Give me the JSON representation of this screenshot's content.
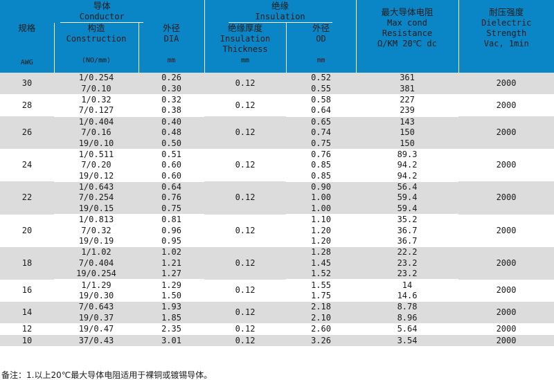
{
  "header": {
    "conductor_zh": "导体",
    "conductor_en": "Conductor",
    "insulation_zh": "绝缘",
    "insulation_en": "Insulation",
    "resistance_zh": "最大导体电阻",
    "resistance_en1": "Max cond",
    "resistance_en2": "Resistance",
    "resistance_en3": "Ω/KM 20℃ dc",
    "dielectric_zh": "耐压强度",
    "dielectric_en1": "Dielectric",
    "dielectric_en2": "Strength",
    "dielectric_en3": "Vac, 1min",
    "awg_zh": "规格",
    "awg_unit": "AWG",
    "construction_zh": "构造",
    "construction_en": "Construction",
    "construction_unit": "(NO/mm)",
    "dia_zh": "外径",
    "dia_en": "DIA",
    "dia_unit": "mm",
    "thickness_zh": "绝缘厚度",
    "thickness_en1": "Insulation",
    "thickness_en2": "Thickness",
    "thickness_unit": "mm",
    "od_zh": "外径",
    "od_en": "OD",
    "od_unit": "mm"
  },
  "groups": [
    {
      "awg": "30",
      "thickness": "0.12",
      "strength": "2000",
      "rows": [
        {
          "construction": "1/0.254",
          "dia": "0.26",
          "od": "0.52",
          "resistance": "361"
        },
        {
          "construction": "7/0.10",
          "dia": "0.30",
          "od": "0.55",
          "resistance": "381"
        }
      ]
    },
    {
      "awg": "28",
      "thickness": "0.12",
      "strength": "2000",
      "rows": [
        {
          "construction": "1/0.32",
          "dia": "0.32",
          "od": "0.58",
          "resistance": "227"
        },
        {
          "construction": "7/0.127",
          "dia": "0.38",
          "od": "0.64",
          "resistance": "239"
        }
      ]
    },
    {
      "awg": "26",
      "thickness": "0.12",
      "strength": "2000",
      "rows": [
        {
          "construction": "1/0.404",
          "dia": "0.40",
          "od": "0.65",
          "resistance": "143"
        },
        {
          "construction": "7/0.16",
          "dia": "0.48",
          "od": "0.74",
          "resistance": "150"
        },
        {
          "construction": "19/0.10",
          "dia": "0.50",
          "od": "0.75",
          "resistance": "150"
        }
      ]
    },
    {
      "awg": "24",
      "thickness": "0.12",
      "strength": "2000",
      "rows": [
        {
          "construction": "1/0.511",
          "dia": "0.51",
          "od": "0.76",
          "resistance": "89.3"
        },
        {
          "construction": "7/0.20",
          "dia": "0.60",
          "od": "0.85",
          "resistance": "94.2"
        },
        {
          "construction": "19/0.12",
          "dia": "0.60",
          "od": "0.85",
          "resistance": "94.2"
        }
      ]
    },
    {
      "awg": "22",
      "thickness": "0.12",
      "strength": "2000",
      "rows": [
        {
          "construction": "1/0.643",
          "dia": "0.64",
          "od": "0.90",
          "resistance": "56.4"
        },
        {
          "construction": "7/0.254",
          "dia": "0.76",
          "od": "1.00",
          "resistance": "59.4"
        },
        {
          "construction": "19/0.15",
          "dia": "0.75",
          "od": "1.00",
          "resistance": "59.4"
        }
      ]
    },
    {
      "awg": "20",
      "thickness": "0.12",
      "strength": "2000",
      "rows": [
        {
          "construction": "1/0.813",
          "dia": "0.81",
          "od": "1.10",
          "resistance": "35.2"
        },
        {
          "construction": "7/0.32",
          "dia": "0.96",
          "od": "1.20",
          "resistance": "36.7"
        },
        {
          "construction": "19/0.19",
          "dia": "0.95",
          "od": "1.20",
          "resistance": "36.7"
        }
      ]
    },
    {
      "awg": "18",
      "thickness": "0.12",
      "strength": "2000",
      "rows": [
        {
          "construction": "1/1.02",
          "dia": "1.02",
          "od": "1.28",
          "resistance": "22.2"
        },
        {
          "construction": "7/0.404",
          "dia": "1.21",
          "od": "1.45",
          "resistance": "23.2"
        },
        {
          "construction": "19/0.254",
          "dia": "1.27",
          "od": "1.52",
          "resistance": "23.2"
        }
      ]
    },
    {
      "awg": "16",
      "thickness": "0.12",
      "strength": "2000",
      "rows": [
        {
          "construction": "1/1.29",
          "dia": "1.29",
          "od": "1.55",
          "resistance": "14"
        },
        {
          "construction": "19/0.30",
          "dia": "1.50",
          "od": "1.75",
          "resistance": "14.6"
        }
      ]
    },
    {
      "awg": "14",
      "thickness": "0.12",
      "strength": "2000",
      "rows": [
        {
          "construction": "7/0.643",
          "dia": "1.93",
          "od": "2.18",
          "resistance": "8.78"
        },
        {
          "construction": "19/0.37",
          "dia": "1.85",
          "od": "2.10",
          "resistance": "8.96"
        }
      ]
    },
    {
      "awg": "12",
      "thickness": "0.12",
      "strength": "2000",
      "rows": [
        {
          "construction": "19/0.47",
          "dia": "2.35",
          "od": "2.60",
          "resistance": "5.64"
        }
      ]
    },
    {
      "awg": "10",
      "thickness": "0.12",
      "strength": "2000",
      "rows": [
        {
          "construction": "37/0.43",
          "dia": "3.01",
          "od": "3.26",
          "resistance": "3.54"
        }
      ]
    }
  ],
  "note": "备注：1.以上20℃最大导体电阻适用于裸铜或镀锡导体。",
  "colors": {
    "header_bg": "#0a86c6",
    "stripe": "#dcdcdc",
    "white": "#ffffff"
  }
}
